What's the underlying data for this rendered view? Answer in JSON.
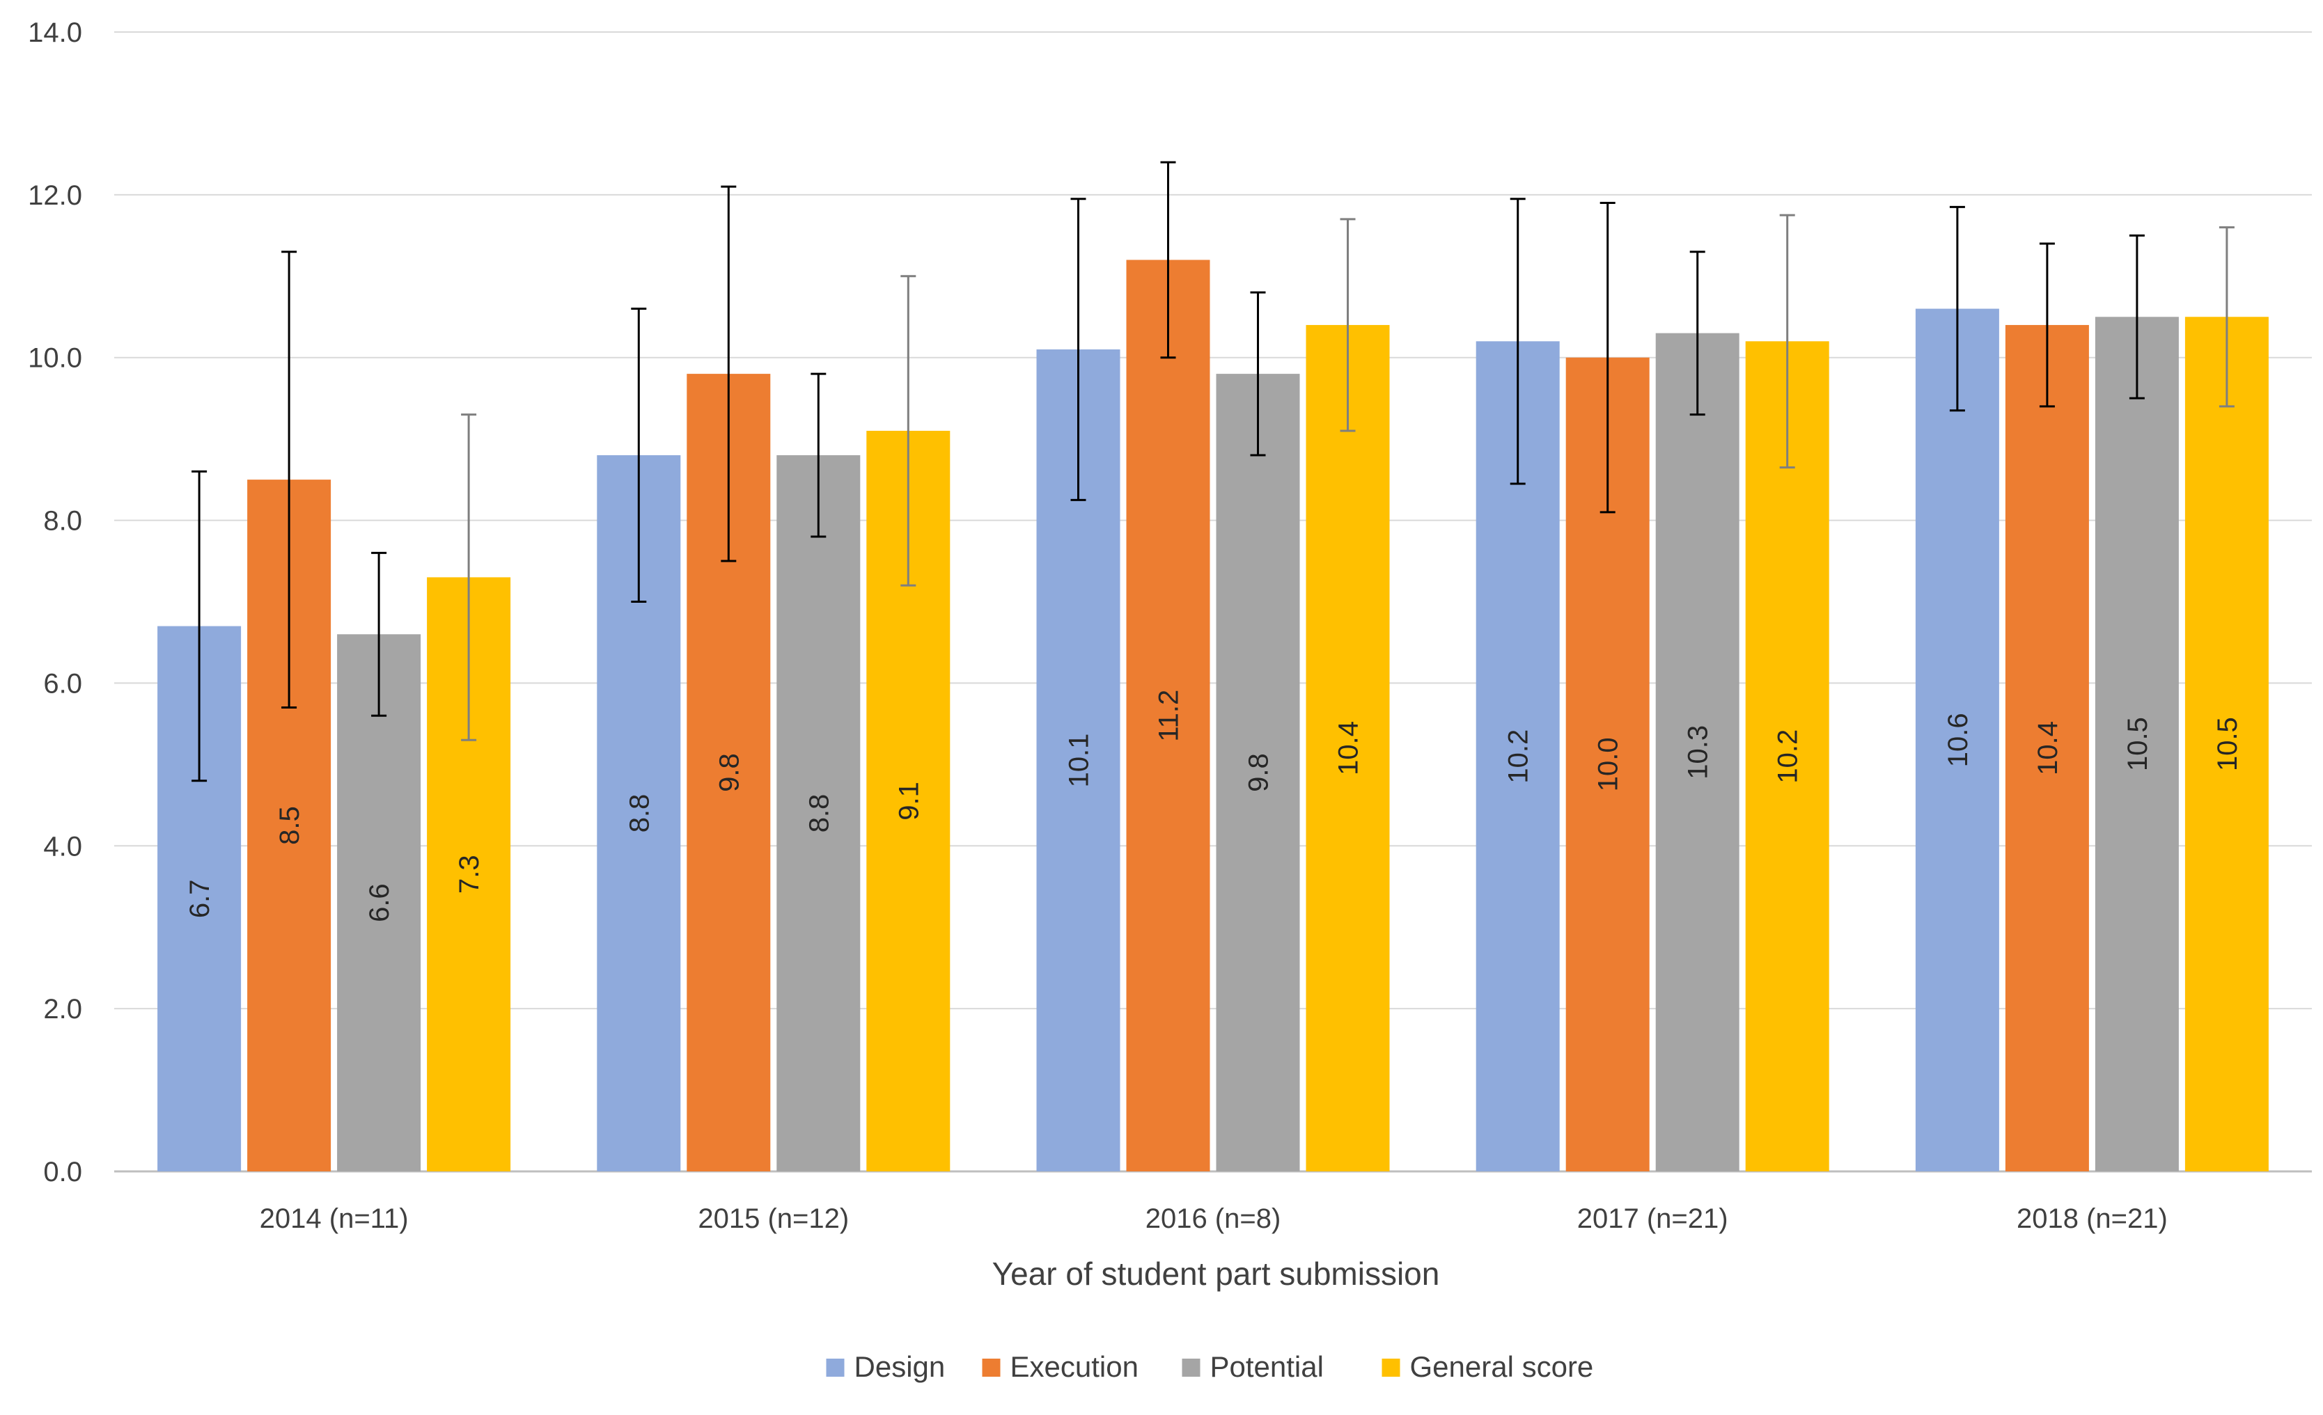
{
  "chart_data": {
    "type": "bar",
    "title": "",
    "xlabel": "Year of student part submission",
    "ylabel": "",
    "ylim": [
      0,
      14
    ],
    "yticks": [
      "0.0",
      "2.0",
      "4.0",
      "6.0",
      "8.0",
      "10.0",
      "12.0",
      "14.0"
    ],
    "grid": true,
    "legend_position": "bottom-center",
    "categories": [
      "2014 (n=11)",
      "2015 (n=12)",
      "2016 (n=8)",
      "2017 (n=21)",
      "2018 (n=21)"
    ],
    "series": [
      {
        "name": "Design",
        "color": "#8FAADC",
        "values": [
          6.7,
          8.8,
          10.1,
          10.2,
          10.6
        ],
        "labels": [
          "6.7",
          "8.8",
          "10.1",
          "10.2",
          "10.6"
        ],
        "error": [
          1.9,
          1.8,
          1.85,
          1.75,
          1.25
        ]
      },
      {
        "name": "Execution",
        "color": "#ED7D31",
        "values": [
          8.5,
          9.8,
          11.2,
          10.0,
          10.4
        ],
        "labels": [
          "8.5",
          "9.8",
          "11.2",
          "10.0",
          "10.4"
        ],
        "error": [
          2.8,
          2.3,
          1.2,
          1.9,
          1.0
        ]
      },
      {
        "name": "Potential",
        "color": "#A5A5A5",
        "values": [
          6.6,
          8.8,
          9.8,
          10.3,
          10.5
        ],
        "labels": [
          "6.6",
          "8.8",
          "9.8",
          "10.3",
          "10.5"
        ],
        "error": [
          1.0,
          1.0,
          1.0,
          1.0,
          1.0
        ]
      },
      {
        "name": "General score",
        "color": "#FFC000",
        "values": [
          7.3,
          9.1,
          10.4,
          10.2,
          10.5
        ],
        "labels": [
          "7.3",
          "9.1",
          "10.4",
          "10.2",
          "10.5"
        ],
        "error": [
          2.0,
          1.9,
          1.3,
          1.55,
          1.1
        ]
      }
    ]
  },
  "colors": {
    "gridline": "#D9D9D9",
    "axis": "#BFBFBF",
    "errorbar_dark": "#000000",
    "errorbar_light": "#7F7F7F",
    "text": "#404040"
  }
}
